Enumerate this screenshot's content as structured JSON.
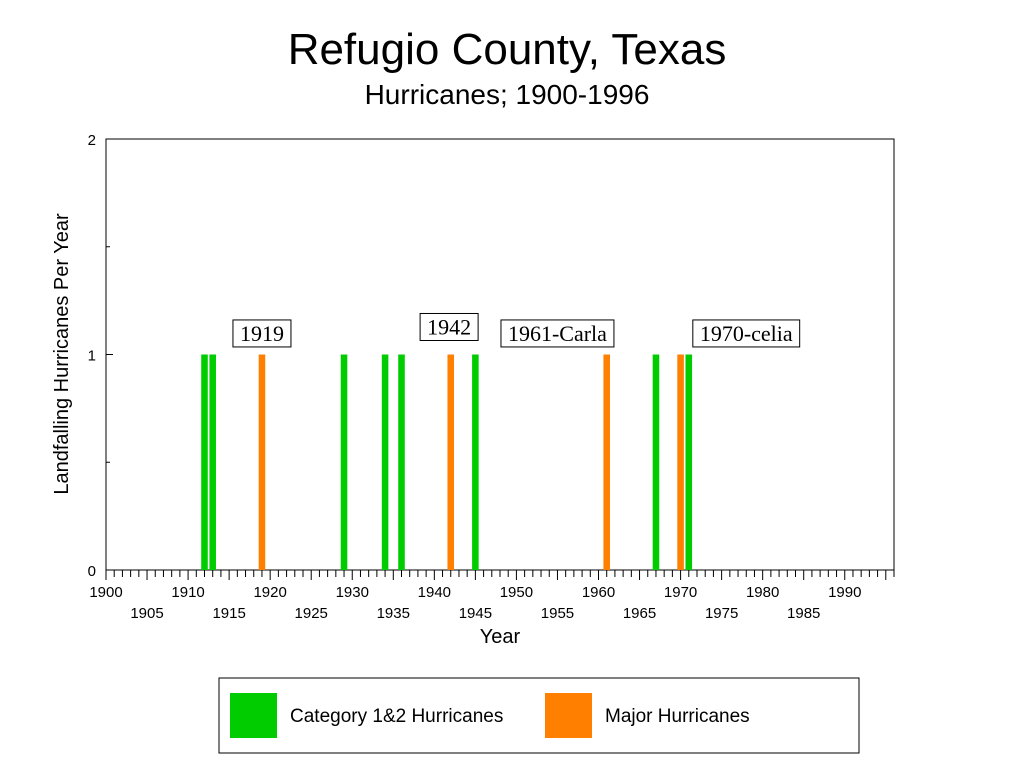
{
  "chart_data": {
    "type": "bar",
    "title": "Refugio County, Texas",
    "subtitle": "Hurricanes;  1900-1996",
    "xlabel": "Year",
    "ylabel": "Landfalling Hurricanes Per Year",
    "xlim": [
      1900,
      1996
    ],
    "ylim": [
      0,
      2
    ],
    "yticks": [
      0,
      1,
      2
    ],
    "yticks_minor": [
      0.5,
      1.5
    ],
    "xticks_major_row1": [
      1900,
      1910,
      1920,
      1930,
      1940,
      1950,
      1960,
      1970,
      1980,
      1990
    ],
    "xticks_major_row2": [
      1905,
      1915,
      1925,
      1935,
      1945,
      1955,
      1965,
      1975,
      1985
    ],
    "grid": false,
    "legend_position": "bottom",
    "series": [
      {
        "name": "Category 1&2 Hurricanes",
        "color": "#00cc00",
        "x": [
          1912,
          1913,
          1929,
          1934,
          1936,
          1945,
          1967,
          1971
        ],
        "values": [
          1,
          1,
          1,
          1,
          1,
          1,
          1,
          1
        ]
      },
      {
        "name": "Major Hurricanes",
        "color": "#ff8000",
        "x": [
          1919,
          1942,
          1961,
          1970
        ],
        "values": [
          1,
          1,
          1,
          1
        ]
      }
    ],
    "annotations": [
      {
        "text": "1919",
        "x": 1919,
        "y": 1.1
      },
      {
        "text": "1942",
        "x": 1941.8,
        "y": 1.13
      },
      {
        "text": "1961-Carla",
        "x": 1955,
        "y": 1.1
      },
      {
        "text": "1970-celia",
        "x": 1978,
        "y": 1.1
      }
    ]
  }
}
